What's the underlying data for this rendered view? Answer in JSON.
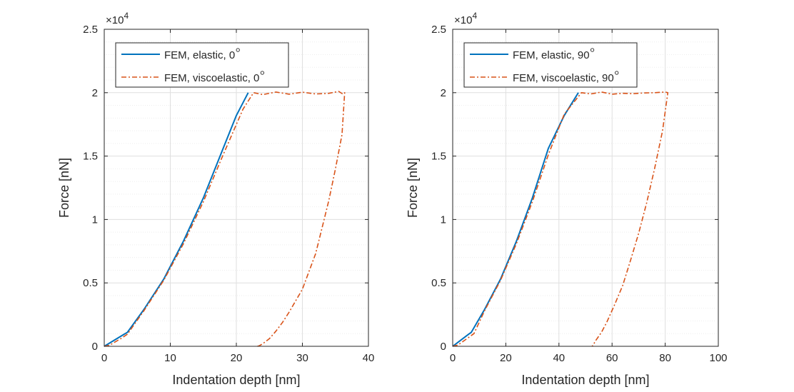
{
  "colors": {
    "elastic": "#0072BD",
    "viscoelastic": "#D95319",
    "axis": "#262626",
    "grid": "#DFDFDF"
  },
  "chart_data": [
    {
      "type": "line",
      "xlabel": "Indentation depth [nm]",
      "ylabel": "Force [nN]",
      "y_exponent_label": "×10",
      "y_exponent": "4",
      "xlim": [
        0,
        40
      ],
      "ylim": [
        0,
        25000
      ],
      "xticks": [
        0,
        10,
        20,
        30,
        40
      ],
      "xtick_labels": [
        "0",
        "10",
        "20",
        "30",
        "40"
      ],
      "yticks": [
        0,
        5000,
        10000,
        15000,
        20000,
        25000
      ],
      "ytick_labels": [
        "0",
        "0.5",
        "1",
        "1.5",
        "2",
        "2.5"
      ],
      "grid": "on (with minor y gridlines)",
      "legend_position": "top-left",
      "series": [
        {
          "name": "FEM, elastic, 0°",
          "legend_text": "FEM, elastic, 0",
          "style": "solid",
          "x": [
            0,
            3.0,
            3.5,
            6,
            9,
            12,
            15,
            18,
            20,
            21.8
          ],
          "y": [
            0,
            950,
            1100,
            2900,
            5300,
            8300,
            11700,
            15600,
            18200,
            20000
          ]
        },
        {
          "name": "FEM, viscoelastic, 0°",
          "legend_text": "FEM, viscoelastic, 0",
          "style": "dashdot",
          "x": [
            0,
            0.8,
            1.5,
            2.5,
            3.5,
            6,
            9,
            12,
            15,
            18,
            21,
            22.6,
            24,
            26,
            28,
            30,
            32,
            34,
            35.5,
            36.1,
            36.4,
            36.0,
            35.0,
            34.0,
            33.0,
            32.0,
            30.0,
            28.0,
            27.0,
            26.0,
            25.0,
            24.0,
            23.5,
            23.2
          ],
          "y": [
            0,
            80,
            300,
            600,
            950,
            2800,
            5200,
            8100,
            11400,
            15100,
            18700,
            20000,
            19850,
            20050,
            19880,
            20040,
            19900,
            19950,
            20100,
            19900,
            20000,
            16700,
            14000,
            11500,
            9400,
            7300,
            4500,
            2700,
            1900,
            1200,
            600,
            200,
            50,
            0
          ]
        }
      ]
    },
    {
      "type": "line",
      "xlabel": "Indentation depth [nm]",
      "ylabel": "Force [nN]",
      "y_exponent_label": "×10",
      "y_exponent": "4",
      "xlim": [
        0,
        100
      ],
      "ylim": [
        0,
        25000
      ],
      "xticks": [
        0,
        20,
        40,
        60,
        80,
        100
      ],
      "xtick_labels": [
        "0",
        "20",
        "40",
        "60",
        "80",
        "100"
      ],
      "yticks": [
        0,
        5000,
        10000,
        15000,
        20000,
        25000
      ],
      "ytick_labels": [
        "0",
        "0.5",
        "1",
        "1.5",
        "2",
        "2.5"
      ],
      "grid": "on (with minor y gridlines)",
      "legend_position": "top-left",
      "series": [
        {
          "name": "FEM, elastic, 90°",
          "legend_text": "FEM, elastic, 90",
          "style": "solid",
          "x": [
            0,
            6,
            7,
            12,
            18,
            24,
            30,
            36,
            42,
            47.3
          ],
          "y": [
            0,
            950,
            1100,
            2900,
            5300,
            8300,
            11700,
            15600,
            18200,
            20000
          ]
        },
        {
          "name": "FEM, viscoelastic, 90°",
          "legend_text": "FEM, viscoelastic, 90",
          "style": "dashdot",
          "x": [
            0,
            2,
            4,
            6,
            8,
            12,
            18,
            24,
            30,
            36,
            42,
            48.5,
            52,
            56,
            60,
            64,
            68,
            72,
            76,
            80,
            81.0,
            79.0,
            76.0,
            73.0,
            70.0,
            67.0,
            64.0,
            61.0,
            58.0,
            56.0,
            54.0,
            53.0,
            52.5
          ],
          "y": [
            0,
            100,
            400,
            700,
            1000,
            2800,
            5200,
            8100,
            11400,
            15100,
            18300,
            20000,
            19900,
            20050,
            19880,
            19950,
            19920,
            19980,
            20000,
            20050,
            20000,
            17000,
            14000,
            11300,
            8900,
            6800,
            4800,
            3300,
            1900,
            1100,
            500,
            150,
            0
          ]
        }
      ]
    }
  ]
}
